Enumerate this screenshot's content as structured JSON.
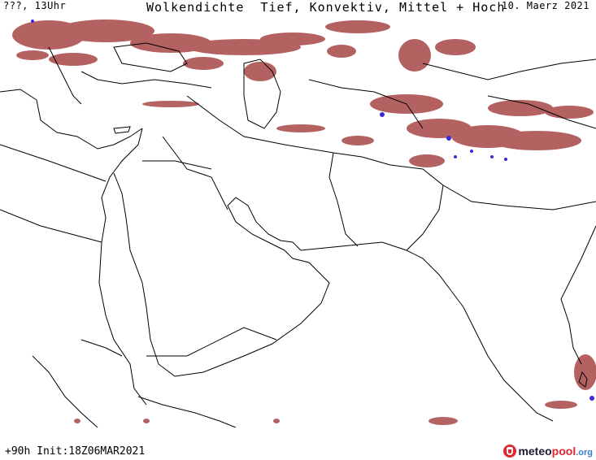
{
  "header": {
    "left_label": "???, 13Uhr",
    "title": "Wolkendichte  Tief, Konvektiv, Mittel + Hoch",
    "date": "10. Maerz 2021"
  },
  "footer": {
    "run_info": "+90h Init:18Z06MAR2021"
  },
  "brand": {
    "part_a": "meteo",
    "part_b": "pool",
    "part_c": ".org"
  },
  "colors": {
    "cloud": "#a84646",
    "cloud_dense": "#8e2f2f",
    "convective": "#3b2bd6",
    "border": "#000000",
    "background": "#ffffff"
  }
}
